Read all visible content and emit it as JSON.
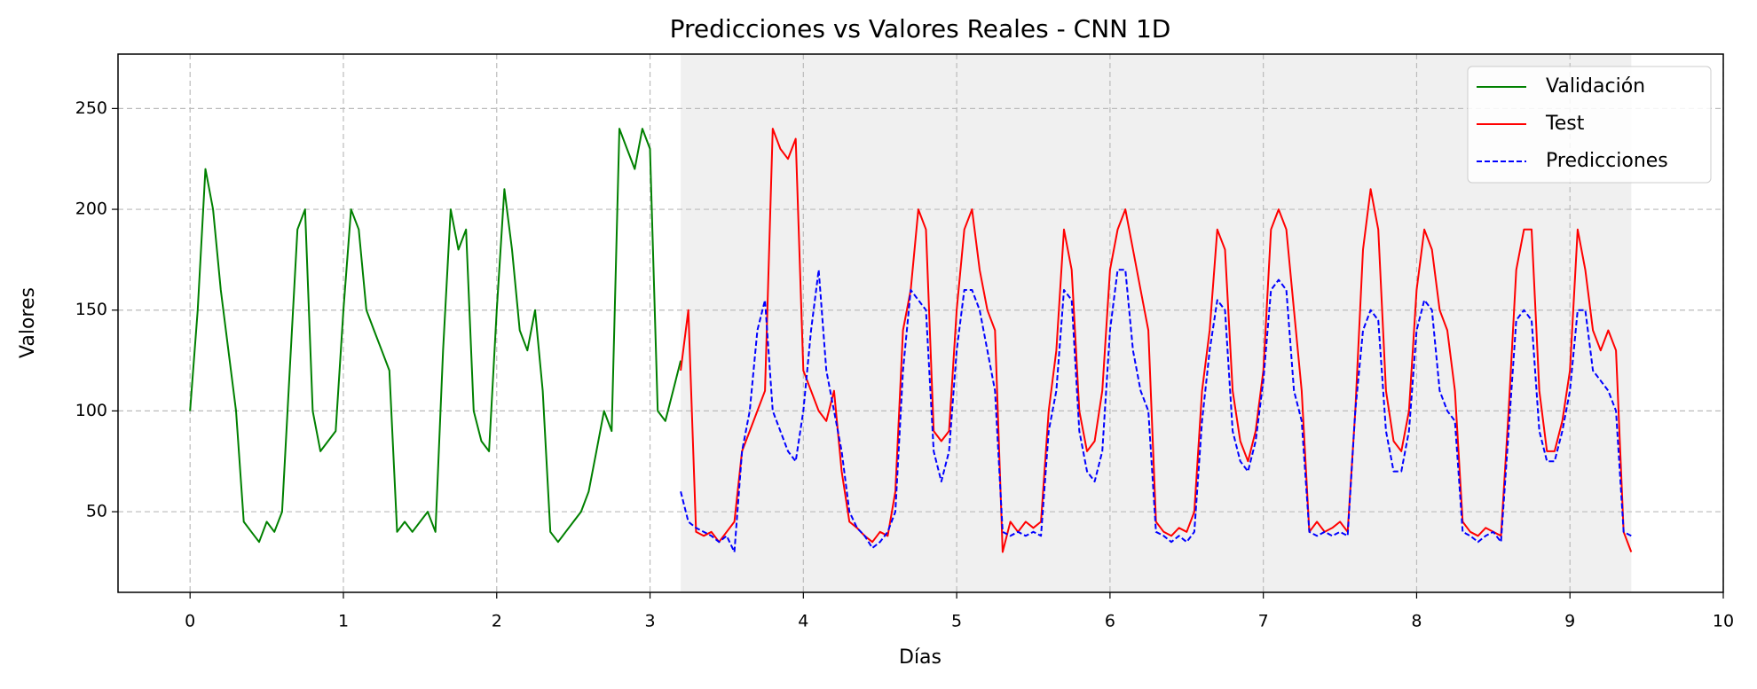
{
  "chart_data": {
    "type": "line",
    "title": "Predicciones vs Valores Reales - CNN 1D",
    "xlabel": "Días",
    "ylabel": "Valores",
    "xlim": [
      -0.47,
      10
    ],
    "ylim": [
      10,
      277
    ],
    "xticks": [
      0,
      1,
      2,
      3,
      4,
      5,
      6,
      7,
      8,
      9,
      10
    ],
    "yticks": [
      50,
      100,
      150,
      200,
      250
    ],
    "grid": true,
    "legend": "upper right",
    "highlight_xlim": [
      3.2,
      9.4
    ],
    "highlight_color": "#f0f0f0",
    "series": [
      {
        "name": "Validación",
        "color": "#008000",
        "linestyle": "solid",
        "x": [
          0,
          0.05,
          0.1,
          0.15,
          0.2,
          0.25,
          0.3,
          0.35,
          0.4,
          0.45,
          0.5,
          0.55,
          0.6,
          0.65,
          0.7,
          0.75,
          0.8,
          0.85,
          0.9,
          0.95,
          1,
          1.05,
          1.1,
          1.15,
          1.2,
          1.25,
          1.3,
          1.35,
          1.4,
          1.45,
          1.5,
          1.55,
          1.6,
          1.65,
          1.7,
          1.75,
          1.8,
          1.85,
          1.9,
          1.95,
          2,
          2.05,
          2.1,
          2.15,
          2.2,
          2.25,
          2.3,
          2.35,
          2.4,
          2.45,
          2.5,
          2.55,
          2.6,
          2.65,
          2.7,
          2.75,
          2.8,
          2.85,
          2.9,
          2.95,
          3,
          3.05,
          3.1,
          3.15,
          3.2
        ],
        "values": [
          100,
          150,
          220,
          200,
          160,
          130,
          100,
          45,
          40,
          35,
          45,
          40,
          50,
          120,
          190,
          200,
          100,
          80,
          85,
          90,
          150,
          200,
          190,
          150,
          140,
          130,
          120,
          40,
          45,
          40,
          45,
          50,
          40,
          130,
          200,
          180,
          190,
          100,
          85,
          80,
          150,
          210,
          180,
          140,
          130,
          150,
          110,
          40,
          35,
          40,
          45,
          50,
          60,
          80,
          100,
          90,
          240,
          230,
          220,
          240,
          230,
          100,
          95,
          110,
          125
        ]
      },
      {
        "name": "Test",
        "color": "#ff0000",
        "linestyle": "solid",
        "x": [
          3.2,
          3.25,
          3.3,
          3.35,
          3.4,
          3.45,
          3.5,
          3.55,
          3.6,
          3.65,
          3.7,
          3.75,
          3.8,
          3.85,
          3.9,
          3.95,
          4,
          4.05,
          4.1,
          4.15,
          4.2,
          4.25,
          4.3,
          4.35,
          4.4,
          4.45,
          4.5,
          4.55,
          4.6,
          4.65,
          4.7,
          4.75,
          4.8,
          4.85,
          4.9,
          4.95,
          5,
          5.05,
          5.1,
          5.15,
          5.2,
          5.25,
          5.3,
          5.35,
          5.4,
          5.45,
          5.5,
          5.55,
          5.6,
          5.65,
          5.7,
          5.75,
          5.8,
          5.85,
          5.9,
          5.95,
          6,
          6.05,
          6.1,
          6.15,
          6.2,
          6.25,
          6.3,
          6.35,
          6.4,
          6.45,
          6.5,
          6.55,
          6.6,
          6.65,
          6.7,
          6.75,
          6.8,
          6.85,
          6.9,
          6.95,
          7,
          7.05,
          7.1,
          7.15,
          7.2,
          7.25,
          7.3,
          7.35,
          7.4,
          7.45,
          7.5,
          7.55,
          7.6,
          7.65,
          7.7,
          7.75,
          7.8,
          7.85,
          7.9,
          7.95,
          8,
          8.05,
          8.1,
          8.15,
          8.2,
          8.25,
          8.3,
          8.35,
          8.4,
          8.45,
          8.5,
          8.55,
          8.6,
          8.65,
          8.7,
          8.75,
          8.8,
          8.85,
          8.9,
          8.95,
          9,
          9.05,
          9.1,
          9.15,
          9.2,
          9.25,
          9.3,
          9.35,
          9.4
        ],
        "values": [
          120,
          150,
          40,
          38,
          40,
          35,
          40,
          45,
          80,
          90,
          100,
          110,
          240,
          230,
          225,
          235,
          120,
          110,
          100,
          95,
          110,
          70,
          45,
          42,
          38,
          35,
          40,
          38,
          60,
          140,
          160,
          200,
          190,
          90,
          85,
          90,
          150,
          190,
          200,
          170,
          150,
          140,
          30,
          45,
          40,
          45,
          42,
          45,
          100,
          130,
          190,
          170,
          100,
          80,
          85,
          110,
          170,
          190,
          200,
          180,
          160,
          140,
          45,
          40,
          38,
          42,
          40,
          50,
          110,
          140,
          190,
          180,
          110,
          85,
          75,
          90,
          120,
          190,
          200,
          190,
          150,
          110,
          40,
          45,
          40,
          42,
          45,
          40,
          100,
          180,
          210,
          190,
          110,
          85,
          80,
          100,
          160,
          190,
          180,
          150,
          140,
          110,
          45,
          40,
          38,
          42,
          40,
          38,
          100,
          170,
          190,
          190,
          110,
          80,
          80,
          95,
          120,
          190,
          170,
          140,
          130,
          140,
          130,
          40,
          30
        ]
      },
      {
        "name": "Predicciones",
        "color": "#0000ff",
        "linestyle": "dashed",
        "x": [
          3.2,
          3.25,
          3.3,
          3.35,
          3.4,
          3.45,
          3.5,
          3.55,
          3.6,
          3.65,
          3.7,
          3.75,
          3.8,
          3.85,
          3.9,
          3.95,
          4,
          4.05,
          4.1,
          4.15,
          4.2,
          4.25,
          4.3,
          4.35,
          4.4,
          4.45,
          4.5,
          4.55,
          4.6,
          4.65,
          4.7,
          4.75,
          4.8,
          4.85,
          4.9,
          4.95,
          5,
          5.05,
          5.1,
          5.15,
          5.2,
          5.25,
          5.3,
          5.35,
          5.4,
          5.45,
          5.5,
          5.55,
          5.6,
          5.65,
          5.7,
          5.75,
          5.8,
          5.85,
          5.9,
          5.95,
          6,
          6.05,
          6.1,
          6.15,
          6.2,
          6.25,
          6.3,
          6.35,
          6.4,
          6.45,
          6.5,
          6.55,
          6.6,
          6.65,
          6.7,
          6.75,
          6.8,
          6.85,
          6.9,
          6.95,
          7,
          7.05,
          7.1,
          7.15,
          7.2,
          7.25,
          7.3,
          7.35,
          7.4,
          7.45,
          7.5,
          7.55,
          7.6,
          7.65,
          7.7,
          7.75,
          7.8,
          7.85,
          7.9,
          7.95,
          8,
          8.05,
          8.1,
          8.15,
          8.2,
          8.25,
          8.3,
          8.35,
          8.4,
          8.45,
          8.5,
          8.55,
          8.6,
          8.65,
          8.7,
          8.75,
          8.8,
          8.85,
          8.9,
          8.95,
          9,
          9.05,
          9.1,
          9.15,
          9.2,
          9.25,
          9.3,
          9.35,
          9.4
        ],
        "values": [
          60,
          45,
          42,
          40,
          38,
          35,
          38,
          30,
          80,
          100,
          140,
          155,
          100,
          90,
          80,
          75,
          100,
          140,
          170,
          120,
          100,
          80,
          50,
          42,
          38,
          32,
          35,
          40,
          50,
          120,
          160,
          155,
          150,
          80,
          65,
          80,
          130,
          160,
          160,
          150,
          130,
          110,
          40,
          38,
          40,
          38,
          40,
          38,
          90,
          110,
          160,
          155,
          90,
          70,
          65,
          80,
          140,
          170,
          170,
          130,
          110,
          100,
          40,
          38,
          35,
          38,
          35,
          40,
          95,
          130,
          155,
          150,
          90,
          75,
          70,
          85,
          115,
          160,
          165,
          160,
          110,
          95,
          40,
          38,
          40,
          38,
          40,
          38,
          100,
          140,
          150,
          145,
          90,
          70,
          70,
          90,
          140,
          155,
          150,
          110,
          100,
          95,
          40,
          38,
          35,
          38,
          40,
          35,
          90,
          145,
          150,
          145,
          90,
          75,
          75,
          90,
          110,
          150,
          150,
          120,
          115,
          110,
          100,
          40,
          38
        ]
      }
    ]
  }
}
